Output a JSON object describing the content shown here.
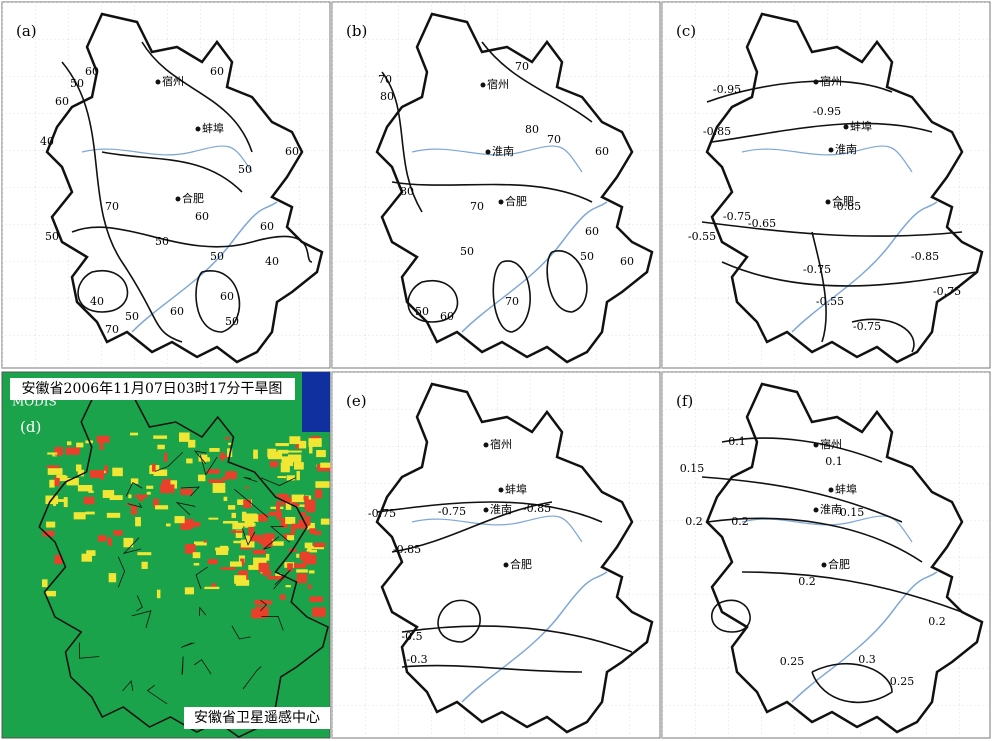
{
  "panels": [
    {
      "label": "(a)",
      "cities": [
        "宿州",
        "蚌埠",
        "合肥"
      ],
      "contour_labels": [
        "60",
        "60",
        "50",
        "60",
        "40",
        "60",
        "50",
        "70",
        "60",
        "60",
        "50",
        "50",
        "50",
        "40",
        "40",
        "60",
        "50",
        "60",
        "70",
        "50"
      ]
    },
    {
      "label": "(b)",
      "cities": [
        "宿州",
        "淮南",
        "合肥"
      ],
      "contour_labels": [
        "70",
        "80",
        "70",
        "80",
        "70",
        "60",
        "80",
        "70",
        "60",
        "50",
        "50",
        "60",
        "70",
        "50",
        "60"
      ]
    },
    {
      "label": "(c)",
      "cities": [
        "宿州",
        "蚌埠",
        "淮南",
        "合肥"
      ],
      "contour_labels": [
        "-0.95",
        "-0.85",
        "-0.95",
        "-0.85",
        "-0.75",
        "-0.65",
        "-0.55",
        "-0.85",
        "-0.75",
        "-0.75",
        "-0.55",
        "-0.75"
      ]
    },
    {
      "label": "(d)",
      "title": "安徽省2006年11月07日03时17分干旱图",
      "source": "MODIS",
      "agency": "安徽省卫星遥感中心"
    },
    {
      "label": "(e)",
      "cities": [
        "宿州",
        "蚌埠",
        "淮南",
        "合肥"
      ],
      "contour_labels": [
        "-0.75",
        "-0.75",
        "-0.85",
        "-0.85",
        "-0.5",
        "-0.3"
      ]
    },
    {
      "label": "(f)",
      "cities": [
        "宿州",
        "蚌埠",
        "淮南",
        "合肥"
      ],
      "contour_labels": [
        "0.1",
        "0.1",
        "0.15",
        "0.15",
        "0.2",
        "0.2",
        "0.2",
        "0.2",
        "0.25",
        "0.3",
        "0.25"
      ]
    }
  ]
}
